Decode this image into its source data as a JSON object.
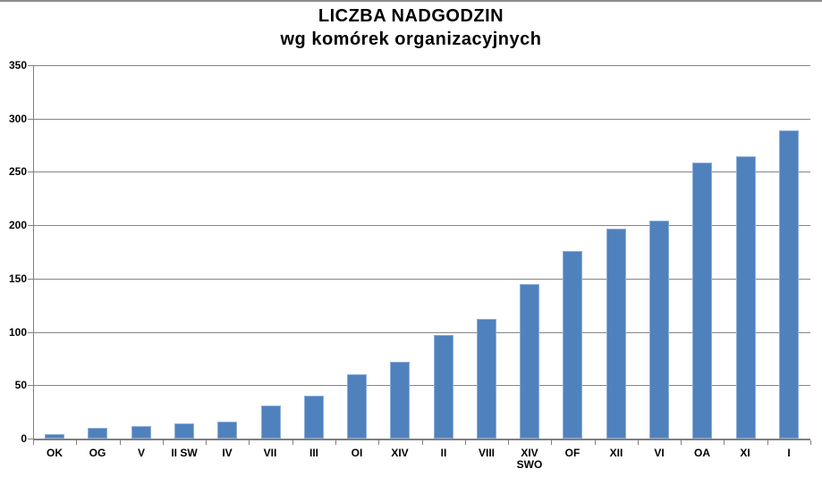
{
  "chart_data": {
    "type": "bar",
    "title": "LICZBA NADGODZIN",
    "subtitle": "wg komórek organizacyjnych",
    "categories": [
      "OK",
      "OG",
      "V",
      "II SW",
      "IV",
      "VII",
      "III",
      "OI",
      "XIV",
      "II",
      "VIII",
      "XIV SWO",
      "OF",
      "XII",
      "VI",
      "OA",
      "XI",
      "I"
    ],
    "values": [
      4,
      10,
      12,
      14,
      16,
      31,
      40,
      60,
      72,
      97,
      112,
      145,
      176,
      197,
      204,
      259,
      265,
      289
    ],
    "xlabel": "",
    "ylabel": "",
    "ylim": [
      0,
      350
    ],
    "yticks": [
      0,
      50,
      100,
      150,
      200,
      250,
      300,
      350
    ],
    "grid": true,
    "legend": "none",
    "colors": {
      "bar_fill": "#4f81bd",
      "bar_border": "#8caed8",
      "gridline": "#858585",
      "axis": "#7f7f7f",
      "text": "#000000",
      "top_edge": "#8c8c8c",
      "background": "#ffffff"
    }
  }
}
